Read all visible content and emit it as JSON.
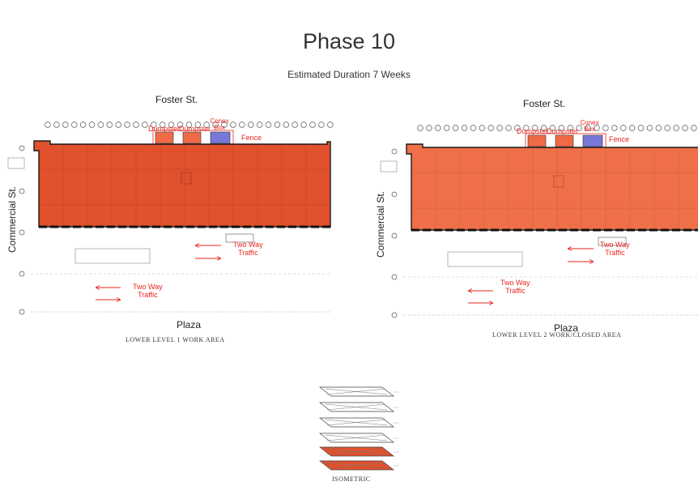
{
  "header": {
    "title": "Phase 10",
    "subtitle": "Estimated Duration 7 Weeks"
  },
  "colors": {
    "work_area": "#e0512c",
    "work_closed_area": "#ef6f48",
    "conex_box": "#7878d8",
    "annotation_red": "#e8261e"
  },
  "plans": [
    {
      "id": "lower-level-1",
      "street_top": "Foster St.",
      "street_side": "Commercial St.",
      "street_bottom": "Plaza",
      "labels": {
        "dumpster_1": "Dumpster",
        "dumpster_2": "Dumpster",
        "conex_line1": "Conex",
        "conex_line2": "Box",
        "fence": "Fence",
        "traffic_upper_1": "Two Way",
        "traffic_upper_2": "Traffic",
        "traffic_lower_1": "Two Way",
        "traffic_lower_2": "Traffic"
      },
      "caption": "LOWER LEVEL 1 WORK AREA"
    },
    {
      "id": "lower-level-2",
      "street_top": "Foster St.",
      "street_side": "Commercial St.",
      "street_bottom": "Plaza",
      "labels": {
        "dumpster_1": "Dumpster",
        "dumpster_2": "Dumpster",
        "conex_line1": "Conex",
        "conex_line2": "Box",
        "fence": "Fence",
        "traffic_upper_1": "Two Way",
        "traffic_upper_2": "Traffic",
        "traffic_lower_1": "Two Way",
        "traffic_lower_2": "Traffic"
      },
      "caption": "LOWER LEVEL 2 WORK/CLOSED AREA"
    }
  ],
  "isometric": {
    "caption": "ISOMETRIC"
  }
}
